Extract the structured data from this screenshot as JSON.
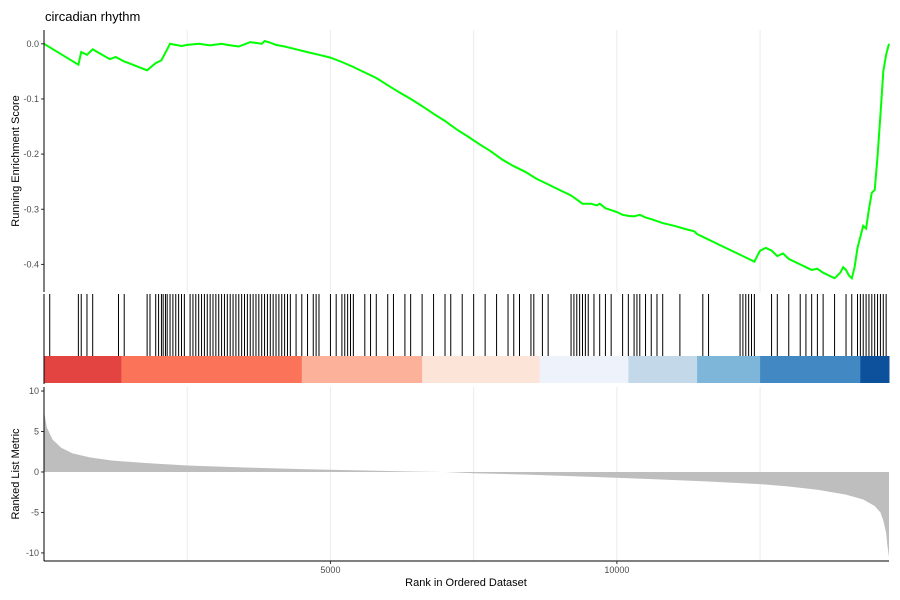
{
  "chart_data": {
    "type": "line",
    "title": "circadian rhythm",
    "xlabel": "Rank in Ordered Dataset",
    "xlim": [
      0,
      14750
    ],
    "x_ticks": [
      5000,
      10000
    ],
    "x_tick_labels": [
      "5000",
      "10000"
    ],
    "grid_x": [
      2500,
      5000,
      7500,
      10000,
      12500
    ],
    "enrichment_panel": {
      "ylabel": "Running Enrichment Score",
      "ylim": [
        -0.45,
        0.025
      ],
      "y_ticks": [
        0.0,
        -0.1,
        -0.2,
        -0.3,
        -0.4
      ],
      "y_tick_labels": [
        "0.0",
        "-0.1",
        "-0.2",
        "-0.3",
        "-0.4"
      ],
      "line_color": "#00ff00",
      "series": [
        {
          "x": [
            0,
            600,
            650,
            750,
            850,
            950,
            1150,
            1250,
            1400,
            1800,
            1950,
            2050,
            2100,
            2150,
            2200,
            2300,
            2400,
            2500,
            2700,
            2900,
            3100,
            3200,
            3400,
            3600,
            3800,
            3850,
            3950,
            4050,
            4200,
            4400,
            4600,
            4800,
            5000,
            5200,
            5400,
            5600,
            5800,
            6000,
            6200,
            6400,
            6600,
            6800,
            7000,
            7200,
            7400,
            7600,
            7800,
            8000,
            8200,
            8400,
            8600,
            8800,
            9000,
            9200,
            9400,
            9550,
            9650,
            9700,
            9800,
            10000,
            10100,
            10200,
            10300,
            10400,
            10500,
            10600,
            10800,
            11000,
            11200,
            11350,
            11400,
            11500,
            11700,
            11900,
            12100,
            12300,
            12400,
            12450,
            12500,
            12600,
            12700,
            12800,
            12900,
            13000,
            13100,
            13200,
            13300,
            13400,
            13500,
            13600,
            13700,
            13800,
            13900,
            13950,
            14000,
            14050,
            14100,
            14150,
            14200,
            14300,
            14350,
            14400,
            14450,
            14500,
            14550,
            14600,
            14650,
            14700,
            14750
          ],
          "y": [
            0.0,
            -0.038,
            -0.015,
            -0.02,
            -0.01,
            -0.016,
            -0.028,
            -0.024,
            -0.032,
            -0.048,
            -0.035,
            -0.03,
            -0.02,
            -0.01,
            0.0,
            -0.002,
            -0.004,
            -0.002,
            0.0,
            -0.003,
            0.0,
            -0.002,
            -0.005,
            0.003,
            0.0,
            0.005,
            0.002,
            -0.002,
            -0.005,
            -0.01,
            -0.015,
            -0.02,
            -0.025,
            -0.033,
            -0.042,
            -0.052,
            -0.062,
            -0.075,
            -0.088,
            -0.1,
            -0.113,
            -0.127,
            -0.14,
            -0.155,
            -0.168,
            -0.182,
            -0.195,
            -0.21,
            -0.222,
            -0.232,
            -0.245,
            -0.255,
            -0.265,
            -0.275,
            -0.29,
            -0.29,
            -0.293,
            -0.29,
            -0.298,
            -0.305,
            -0.31,
            -0.312,
            -0.313,
            -0.31,
            -0.315,
            -0.318,
            -0.325,
            -0.33,
            -0.336,
            -0.34,
            -0.345,
            -0.35,
            -0.36,
            -0.37,
            -0.38,
            -0.39,
            -0.395,
            -0.385,
            -0.375,
            -0.37,
            -0.375,
            -0.385,
            -0.38,
            -0.39,
            -0.395,
            -0.4,
            -0.405,
            -0.41,
            -0.408,
            -0.415,
            -0.42,
            -0.425,
            -0.415,
            -0.405,
            -0.41,
            -0.42,
            -0.425,
            -0.405,
            -0.37,
            -0.33,
            -0.335,
            -0.3,
            -0.27,
            -0.265,
            -0.205,
            -0.13,
            -0.05,
            -0.02,
            0.0
          ]
        }
      ]
    },
    "hit_positions": [
      100,
      600,
      650,
      750,
      850,
      1300,
      1400,
      1800,
      1850,
      1950,
      2000,
      2050,
      2080,
      2120,
      2150,
      2200,
      2250,
      2300,
      2350,
      2400,
      2450,
      2550,
      2600,
      2650,
      2700,
      2750,
      2800,
      2850,
      2900,
      2950,
      3000,
      3050,
      3100,
      3150,
      3200,
      3250,
      3300,
      3350,
      3400,
      3450,
      3500,
      3550,
      3600,
      3650,
      3700,
      3750,
      3800,
      3850,
      3900,
      3950,
      4000,
      4050,
      4100,
      4150,
      4200,
      4250,
      4300,
      4400,
      4500,
      4600,
      4700,
      4750,
      4800,
      5000,
      5100,
      5200,
      5250,
      5300,
      5350,
      5400,
      5600,
      5700,
      5800,
      6000,
      6100,
      6300,
      6400,
      6600,
      6800,
      7000,
      7100,
      7300,
      7500,
      7700,
      7900,
      8100,
      8200,
      8300,
      8500,
      8550,
      8700,
      8800,
      9200,
      9250,
      9300,
      9350,
      9400,
      9450,
      9500,
      9600,
      9700,
      9800,
      9900,
      10100,
      10200,
      10300,
      10350,
      10400,
      10500,
      10600,
      10700,
      10800,
      11100,
      11500,
      11600,
      12150,
      12200,
      12250,
      12300,
      12350,
      12400,
      12700,
      12800,
      13000,
      13200,
      13300,
      13400,
      13500,
      13600,
      13800,
      14000,
      14100,
      14200,
      14250,
      14300,
      14350,
      14400,
      14450,
      14500,
      14550,
      14600,
      14650,
      14700
    ],
    "rank_color_blocks": [
      {
        "start": 0,
        "end": 1350,
        "color": "#e34441"
      },
      {
        "start": 1350,
        "end": 4500,
        "color": "#fb7459"
      },
      {
        "start": 4500,
        "end": 6600,
        "color": "#fcb29a"
      },
      {
        "start": 6600,
        "end": 8650,
        "color": "#fde4d8"
      },
      {
        "start": 8650,
        "end": 10200,
        "color": "#eef3fb"
      },
      {
        "start": 10200,
        "end": 11400,
        "color": "#c3d9ea"
      },
      {
        "start": 11400,
        "end": 12500,
        "color": "#7eb6da"
      },
      {
        "start": 12500,
        "end": 14250,
        "color": "#4289c4"
      },
      {
        "start": 14250,
        "end": 14750,
        "color": "#0d519d"
      }
    ],
    "ranked_panel": {
      "ylabel": "Ranked List Metric",
      "ylim": [
        -11,
        10.5
      ],
      "y_ticks": [
        10,
        5,
        0,
        -5,
        -10
      ],
      "y_tick_labels": [
        "10",
        "5",
        "0",
        "-5",
        "-10"
      ],
      "fill_color": "#bebebe",
      "x": [
        0,
        50,
        150,
        300,
        500,
        800,
        1200,
        1800,
        2500,
        3500,
        4500,
        5500,
        6500,
        7000,
        7500,
        8500,
        9500,
        10500,
        11500,
        12500,
        13000,
        13500,
        14000,
        14300,
        14500,
        14600,
        14650,
        14700,
        14720,
        14750
      ],
      "y": [
        7.5,
        5.5,
        4.0,
        3.0,
        2.3,
        1.8,
        1.4,
        1.1,
        0.8,
        0.55,
        0.35,
        0.2,
        0.05,
        0.0,
        -0.15,
        -0.35,
        -0.6,
        -0.85,
        -1.15,
        -1.5,
        -1.8,
        -2.2,
        -2.8,
        -3.4,
        -4.2,
        -5.0,
        -6.0,
        -7.5,
        -9.0,
        -10.5
      ]
    }
  }
}
